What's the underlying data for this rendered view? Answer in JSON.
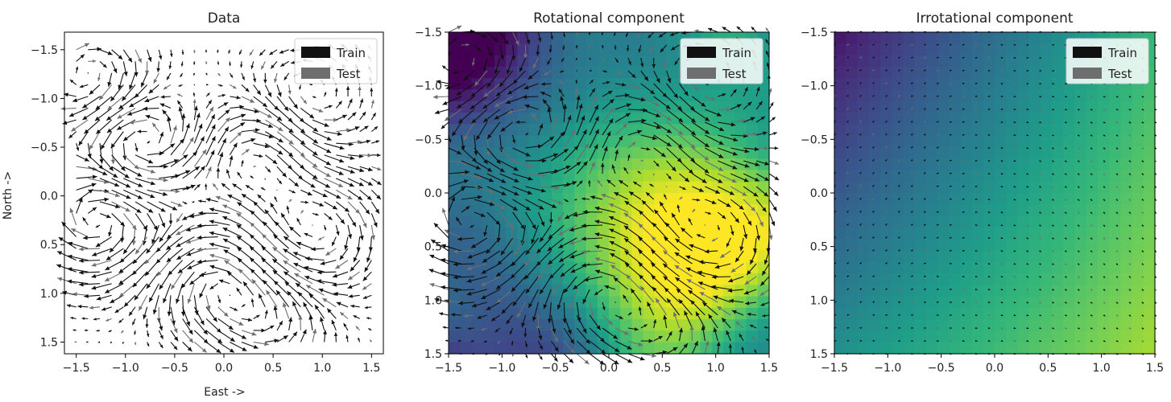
{
  "figure": {
    "ylabel": "North ->",
    "xlabel": "East ->"
  },
  "chart_data": [
    {
      "type": "quiver",
      "title": "Data",
      "xlim": [
        -1.62,
        1.62
      ],
      "ylim": [
        -1.68,
        1.62
      ],
      "y_inverted": true,
      "xticks": [
        -1.5,
        -1.0,
        -0.5,
        0.0,
        0.5,
        1.0,
        1.5
      ],
      "yticks": [
        -1.5,
        -1.0,
        -0.5,
        0.0,
        0.5,
        1.0,
        1.5
      ],
      "xtick_labels": [
        "−1.5",
        "−1.0",
        "−0.5",
        "0.0",
        "0.5",
        "1.0",
        "1.5"
      ],
      "ytick_labels": [
        "−1.5",
        "−1.0",
        "−0.5",
        "0.0",
        "0.5",
        "1.0",
        "1.5"
      ],
      "legend": {
        "position": "top-right",
        "entries": [
          {
            "label": "Train",
            "color": "#111111"
          },
          {
            "label": "Test",
            "color": "#6e6e6e"
          }
        ]
      },
      "grid": false,
      "colormap": null
    },
    {
      "type": "quiver+heatmap",
      "title": "Rotational component",
      "xlim": [
        -1.5,
        1.5
      ],
      "ylim": [
        -1.5,
        1.5
      ],
      "y_inverted": true,
      "xticks": [
        -1.5,
        -1.0,
        -0.5,
        0.0,
        0.5,
        1.0,
        1.5
      ],
      "yticks": [
        -1.5,
        -1.0,
        -0.5,
        0.0,
        0.5,
        1.0,
        1.5
      ],
      "xtick_labels": [
        "−1.5",
        "−1.0",
        "−0.5",
        "0.0",
        "0.5",
        "1.0",
        "1.5"
      ],
      "ytick_labels": [
        "−1.5",
        "−1.0",
        "−0.5",
        "0.0",
        "0.5",
        "1.0",
        "1.5"
      ],
      "legend": {
        "position": "top-right",
        "entries": [
          {
            "label": "Train",
            "color": "#111111"
          },
          {
            "label": "Test",
            "color": "#6e6e6e"
          }
        ]
      },
      "grid": false,
      "colormap": "viridis"
    },
    {
      "type": "quiver+heatmap",
      "title": "Irrotational component",
      "xlim": [
        -1.5,
        1.5
      ],
      "ylim": [
        -1.5,
        1.5
      ],
      "y_inverted": true,
      "xticks": [
        -1.5,
        -1.0,
        -0.5,
        0.0,
        0.5,
        1.0,
        1.5
      ],
      "yticks": [
        -1.5,
        -1.0,
        -0.5,
        0.0,
        0.5,
        1.0,
        1.5
      ],
      "xtick_labels": [
        "−1.5",
        "−1.0",
        "−0.5",
        "0.0",
        "0.5",
        "1.0",
        "1.5"
      ],
      "ytick_labels": [
        "−1.5",
        "−1.0",
        "−0.5",
        "0.0",
        "0.5",
        "1.0",
        "1.5"
      ],
      "legend": {
        "position": "top-right",
        "entries": [
          {
            "label": "Train",
            "color": "#111111"
          },
          {
            "label": "Test",
            "color": "#6e6e6e"
          }
        ]
      },
      "grid": false,
      "colormap": "viridis"
    }
  ]
}
